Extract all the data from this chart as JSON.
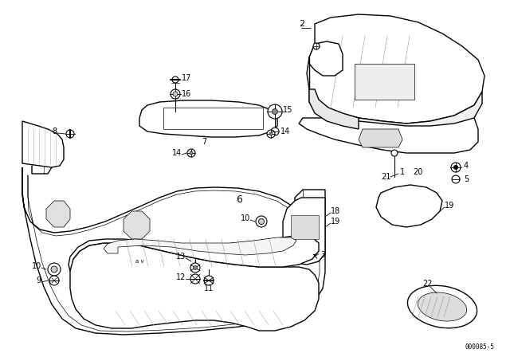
{
  "background_color": "#ffffff",
  "line_color": "#000000",
  "diagram_code": "000085-5",
  "figsize": [
    6.4,
    4.48
  ],
  "dpi": 100,
  "lw_main": 1.0,
  "lw_thin": 0.5,
  "label_fontsize": 7
}
